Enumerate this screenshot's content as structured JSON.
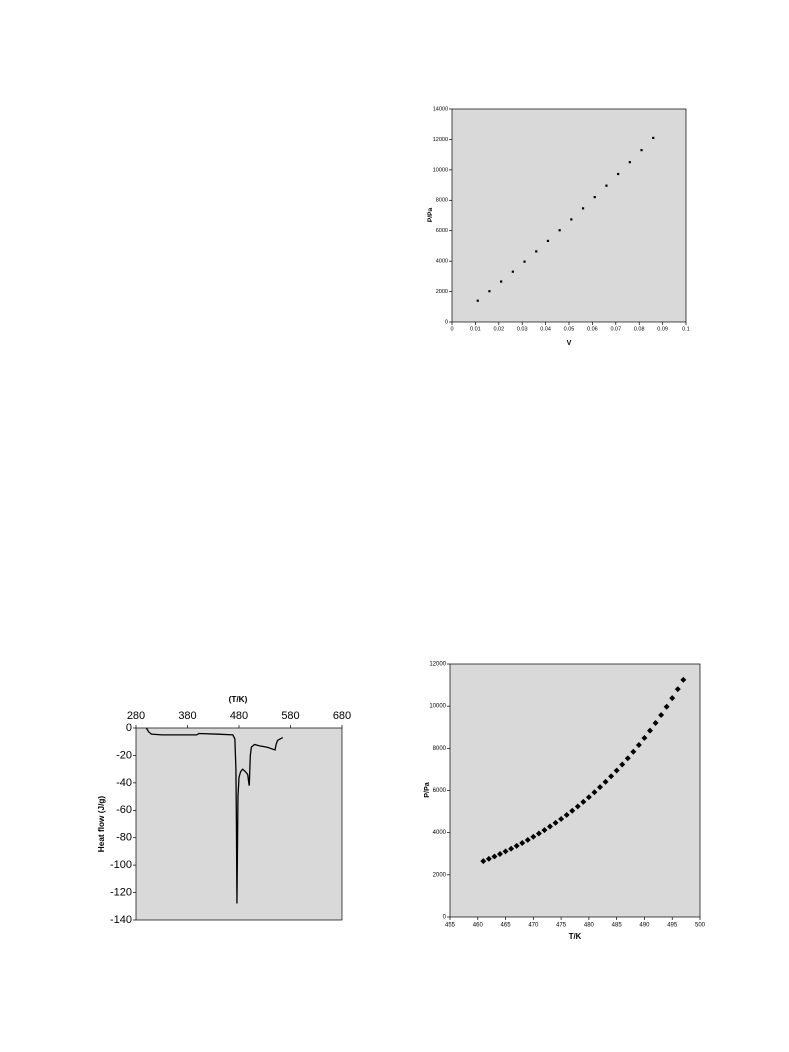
{
  "chart_data": [
    {
      "type": "scatter",
      "x_label": "V",
      "y_label": "P/Pa",
      "marker": "square",
      "color": "#000000",
      "x": [
        0.011,
        0.016,
        0.021,
        0.026,
        0.031,
        0.036,
        0.041,
        0.046,
        0.051,
        0.056,
        0.061,
        0.066,
        0.071,
        0.076,
        0.081,
        0.086
      ],
      "values": [
        1400,
        2023,
        2658,
        3307,
        3968,
        4642,
        5330,
        6031,
        6743,
        7470,
        8210,
        8961,
        9727,
        10505,
        11296,
        12100
      ],
      "xlim": [
        0,
        0.1
      ],
      "xticks": [
        0,
        0.01,
        0.02,
        0.03,
        0.04,
        0.05,
        0.06,
        0.07,
        0.08,
        0.09,
        0.1
      ],
      "ylim": [
        0,
        14000
      ],
      "yticks": [
        0,
        2000,
        4000,
        6000,
        8000,
        10000,
        12000,
        14000
      ]
    },
    {
      "type": "line",
      "x_label": "(T/K)",
      "y_label": "Heat flow (J/g)",
      "x_axis_position": "top",
      "color": "#000000",
      "x": [
        300,
        305,
        310,
        330,
        360,
        398,
        402,
        440,
        468,
        472,
        474,
        475,
        476,
        477,
        478,
        480,
        483,
        487,
        493,
        497,
        499,
        500,
        501,
        502,
        504,
        510,
        520,
        535,
        550,
        552,
        555,
        560,
        565
      ],
      "values": [
        0,
        -3,
        -4.5,
        -5,
        -5,
        -5,
        -4,
        -4.5,
        -5,
        -8,
        -30,
        -70,
        -128,
        -90,
        -50,
        -36,
        -32,
        -30,
        -32,
        -34,
        -40,
        -42,
        -30,
        -20,
        -14,
        -12,
        -13,
        -14,
        -16,
        -12,
        -9,
        -8,
        -7
      ],
      "xlim": [
        280,
        680
      ],
      "xticks": [
        280,
        380,
        480,
        580,
        680
      ],
      "ylim": [
        -140,
        0
      ],
      "yticks": [
        -140,
        -120,
        -100,
        -80,
        -60,
        -40,
        -20,
        0
      ]
    },
    {
      "type": "scatter",
      "x_label": "T/K",
      "y_label": "P/Pa",
      "marker": "diamond",
      "color": "#000000",
      "x": [
        461,
        462,
        463,
        464,
        465,
        466,
        467,
        468,
        469,
        470,
        471,
        472,
        473,
        474,
        475,
        476,
        477,
        478,
        479,
        480,
        481,
        482,
        483,
        484,
        485,
        486,
        487,
        488,
        489,
        490,
        491,
        492,
        493,
        494,
        495,
        496,
        497
      ],
      "values": [
        2650,
        2759,
        2872,
        2989,
        3112,
        3239,
        3372,
        3510,
        3654,
        3804,
        3960,
        4122,
        4291,
        4467,
        4650,
        4840,
        5038,
        5245,
        5460,
        5683,
        5916,
        6159,
        6411,
        6674,
        6947,
        7232,
        7528,
        7837,
        8158,
        8492,
        8840,
        9202,
        9579,
        9972,
        10380,
        10806,
        11250
      ],
      "xlim": [
        455,
        500
      ],
      "xticks": [
        455,
        460,
        465,
        470,
        475,
        480,
        485,
        490,
        495,
        500
      ],
      "ylim": [
        0,
        12000
      ],
      "yticks": [
        0,
        2000,
        4000,
        6000,
        8000,
        10000,
        12000
      ]
    }
  ]
}
